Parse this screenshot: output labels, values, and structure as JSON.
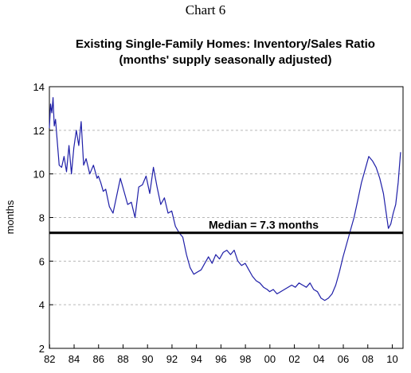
{
  "chart_label": "Chart 6",
  "chart_data": {
    "type": "line",
    "title": "Existing Single-Family Homes: Inventory/Sales Ratio",
    "subtitle": "(months' supply seasonally adjusted)",
    "ylabel": "months",
    "xlabel": "",
    "xlim": [
      1982.0,
      2010.9
    ],
    "ylim": [
      2,
      14
    ],
    "yticks": [
      2,
      4,
      6,
      8,
      10,
      12,
      14
    ],
    "xticks": [
      "82",
      "84",
      "86",
      "88",
      "90",
      "92",
      "94",
      "96",
      "98",
      "00",
      "02",
      "04",
      "06",
      "08",
      "10"
    ],
    "grid": "horizontal dashed",
    "line_color": "#1f1fa8",
    "median": {
      "value": 7.3,
      "label": "Median = 7.3 months",
      "color": "#000000"
    },
    "series": [
      {
        "x": [
          1982.0,
          1982.1,
          1982.2,
          1982.3,
          1982.4,
          1982.5,
          1982.6,
          1982.8,
          1983.0,
          1983.2,
          1983.4,
          1983.6,
          1983.8,
          1984.0,
          1984.2,
          1984.4,
          1984.6,
          1984.8,
          1985.0,
          1985.3,
          1985.6,
          1985.9,
          1986.0,
          1986.2,
          1986.4,
          1986.6,
          1986.9,
          1987.2,
          1987.5,
          1987.8,
          1988.1,
          1988.4,
          1988.7,
          1989.0,
          1989.3,
          1989.6,
          1989.9,
          1990.2,
          1990.5,
          1990.8,
          1991.1,
          1991.4,
          1991.7,
          1992.0,
          1992.3,
          1992.6,
          1992.9,
          1993.2,
          1993.5,
          1993.8,
          1994.1,
          1994.4,
          1994.7,
          1995.0,
          1995.3,
          1995.6,
          1995.9,
          1996.2,
          1996.5,
          1996.8,
          1997.1,
          1997.4,
          1997.7,
          1998.0,
          1998.3,
          1998.6,
          1998.9,
          1999.2,
          1999.5,
          1999.8,
          2000.0,
          2000.3,
          2000.6,
          2000.9,
          2001.2,
          2001.5,
          2001.8,
          2002.1,
          2002.4,
          2002.7,
          2003.0,
          2003.3,
          2003.6,
          2003.9,
          2004.2,
          2004.5,
          2004.8,
          2005.1,
          2005.4,
          2005.7,
          2006.0,
          2006.3,
          2006.6,
          2006.9,
          2007.2,
          2007.5,
          2007.8,
          2008.1,
          2008.4,
          2008.7,
          2009.0,
          2009.3,
          2009.5,
          2009.7,
          2009.9,
          2010.1,
          2010.3,
          2010.5,
          2010.7
        ],
        "y": [
          12.1,
          13.2,
          12.8,
          13.5,
          12.2,
          12.5,
          11.8,
          10.4,
          10.3,
          10.8,
          10.1,
          11.3,
          10.0,
          11.2,
          12.0,
          11.3,
          12.4,
          10.4,
          10.7,
          10.0,
          10.4,
          9.8,
          9.9,
          9.6,
          9.2,
          9.3,
          8.5,
          8.2,
          9.0,
          9.8,
          9.2,
          8.6,
          8.7,
          8.0,
          9.4,
          9.5,
          9.9,
          9.1,
          10.3,
          9.4,
          8.6,
          8.9,
          8.2,
          8.3,
          7.6,
          7.3,
          7.1,
          6.3,
          5.7,
          5.4,
          5.5,
          5.6,
          5.9,
          6.2,
          5.9,
          6.3,
          6.1,
          6.4,
          6.5,
          6.3,
          6.5,
          6.0,
          5.8,
          5.9,
          5.6,
          5.3,
          5.1,
          5.0,
          4.8,
          4.7,
          4.6,
          4.7,
          4.5,
          4.6,
          4.7,
          4.8,
          4.9,
          4.8,
          5.0,
          4.9,
          4.8,
          5.0,
          4.7,
          4.6,
          4.3,
          4.2,
          4.3,
          4.5,
          4.9,
          5.5,
          6.2,
          6.8,
          7.4,
          8.0,
          8.8,
          9.6,
          10.2,
          10.8,
          10.6,
          10.3,
          9.8,
          9.1,
          8.3,
          7.5,
          7.7,
          8.2,
          8.6,
          9.6,
          11.0
        ]
      }
    ]
  }
}
